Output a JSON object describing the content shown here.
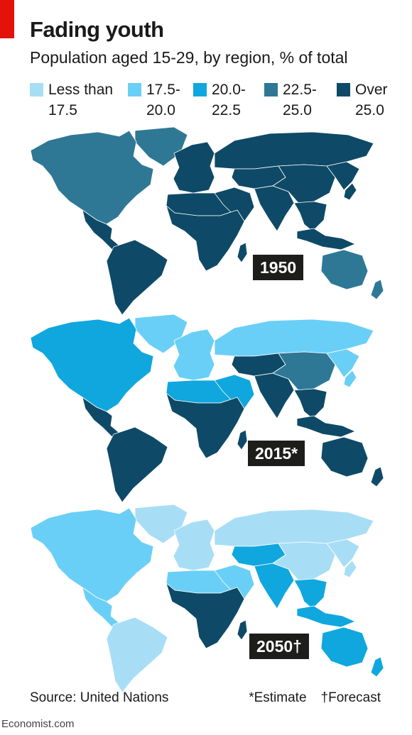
{
  "header": {
    "title": "Fading youth",
    "subtitle": "Population aged 15-29, by region, % of total"
  },
  "legend": [
    {
      "label": "Less than\n17.5",
      "color": "#a8def5"
    },
    {
      "label": "17.5-\n20.0",
      "color": "#6acff6"
    },
    {
      "label": "20.0-\n22.5",
      "color": "#0fa7de"
    },
    {
      "label": "22.5-\n25.0",
      "color": "#2e7896"
    },
    {
      "label": "Over\n25.0",
      "color": "#0e4a67"
    }
  ],
  "maps": [
    {
      "year_label": "1950",
      "regions": {
        "north_america": 3,
        "greenland": 3,
        "central_america": 4,
        "south_america": 4,
        "europe": 4,
        "russia": 4,
        "north_africa": 4,
        "middle_east": 4,
        "sub_saharan_africa": 4,
        "central_asia": 4,
        "south_asia": 4,
        "china": 4,
        "east_asia": 4,
        "southeast_asia": 4,
        "indonesia": 4,
        "australia": 3,
        "new_zealand": 3,
        "madagascar": 4
      }
    },
    {
      "year_label": "2015*",
      "regions": {
        "north_america": 2,
        "greenland": 1,
        "central_america": 4,
        "south_america": 4,
        "europe": 1,
        "russia": 1,
        "north_africa": 2,
        "middle_east": 2,
        "sub_saharan_africa": 4,
        "central_asia": 4,
        "south_asia": 4,
        "china": 3,
        "east_asia": 1,
        "southeast_asia": 4,
        "indonesia": 4,
        "australia": 4,
        "new_zealand": 4,
        "madagascar": 4
      }
    },
    {
      "year_label": "2050†",
      "regions": {
        "north_america": 1,
        "greenland": 0,
        "central_america": 1,
        "south_america": 0,
        "europe": 0,
        "russia": 0,
        "north_africa": 1,
        "middle_east": 1,
        "sub_saharan_africa": 4,
        "central_asia": 2,
        "south_asia": 2,
        "china": 0,
        "east_asia": 0,
        "southeast_asia": 2,
        "indonesia": 2,
        "australia": 2,
        "new_zealand": 2,
        "madagascar": 4
      }
    }
  ],
  "footer": {
    "source": "Source: United Nations",
    "note_estimate": "*Estimate",
    "note_forecast": "†Forecast",
    "brand": "Economist.com"
  }
}
